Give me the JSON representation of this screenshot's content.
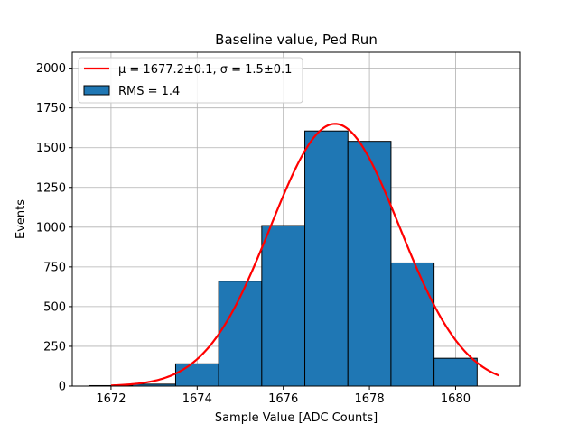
{
  "chart_data": {
    "type": "bar",
    "title": "Baseline value, Ped Run",
    "xlabel": "Sample Value [ADC Counts]",
    "ylabel": "Events",
    "xlim": [
      1671.1,
      1681.5
    ],
    "ylim": [
      0,
      2100
    ],
    "xticks": [
      1672,
      1674,
      1676,
      1678,
      1680
    ],
    "yticks": [
      0,
      250,
      500,
      750,
      1000,
      1250,
      1500,
      1750,
      2000
    ],
    "grid": true,
    "legend_position": "upper-left",
    "bins": [
      {
        "left": 1671.5,
        "right": 1672.5,
        "value": 3
      },
      {
        "left": 1672.5,
        "right": 1673.5,
        "value": 12
      },
      {
        "left": 1673.5,
        "right": 1674.5,
        "value": 140
      },
      {
        "left": 1674.5,
        "right": 1675.5,
        "value": 660
      },
      {
        "left": 1675.5,
        "right": 1676.5,
        "value": 1010
      },
      {
        "left": 1676.5,
        "right": 1677.5,
        "value": 1605
      },
      {
        "left": 1677.5,
        "right": 1678.5,
        "value": 1540
      },
      {
        "left": 1678.5,
        "right": 1679.5,
        "value": 775
      },
      {
        "left": 1679.5,
        "right": 1680.5,
        "value": 175
      }
    ],
    "fit": {
      "mu": 1677.2,
      "sigma": 1.5,
      "amplitude": 1650,
      "x_range": [
        1672,
        1681
      ]
    },
    "legend": [
      {
        "label": "μ = 1677.2±0.1, σ = 1.5±0.1",
        "kind": "line",
        "color": "#ff0000"
      },
      {
        "label": "RMS = 1.4",
        "kind": "patch",
        "color": "#1f77b4"
      }
    ],
    "colors": {
      "bar": "#1f77b4",
      "fit": "#ff0000",
      "grid": "#b0b0b0"
    }
  }
}
